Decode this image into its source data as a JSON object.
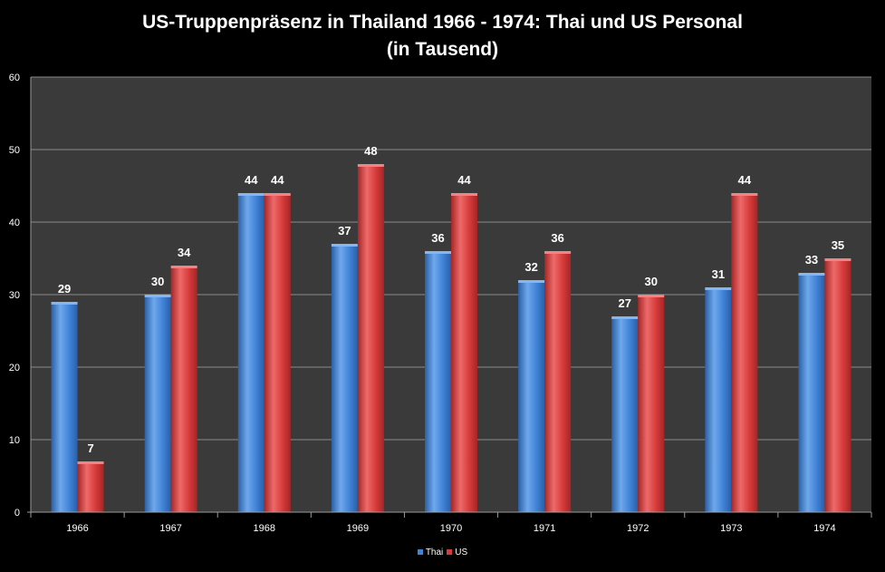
{
  "chart_data": {
    "type": "bar",
    "title": "US-Truppenpräsenz in Thailand 1966 - 1974: Thai und US Personal",
    "subtitle": "(in Tausend)",
    "categories": [
      "1966",
      "1967",
      "1968",
      "1969",
      "1970",
      "1971",
      "1972",
      "1973",
      "1974"
    ],
    "series": [
      {
        "name": "Thai",
        "values": [
          29,
          30,
          44,
          37,
          36,
          32,
          27,
          31,
          33
        ],
        "color": "#3f82d6"
      },
      {
        "name": "US",
        "values": [
          7,
          34,
          44,
          48,
          44,
          36,
          30,
          44,
          35
        ],
        "color": "#d63a3a"
      }
    ],
    "ylim": [
      0,
      60
    ],
    "yticks": [
      0,
      10,
      20,
      30,
      40,
      50,
      60
    ],
    "grid": true,
    "legend_position": "bottom",
    "data_labels": true,
    "plot_background": "#3a3a3a",
    "gridline_color": "#8a8a8a"
  }
}
